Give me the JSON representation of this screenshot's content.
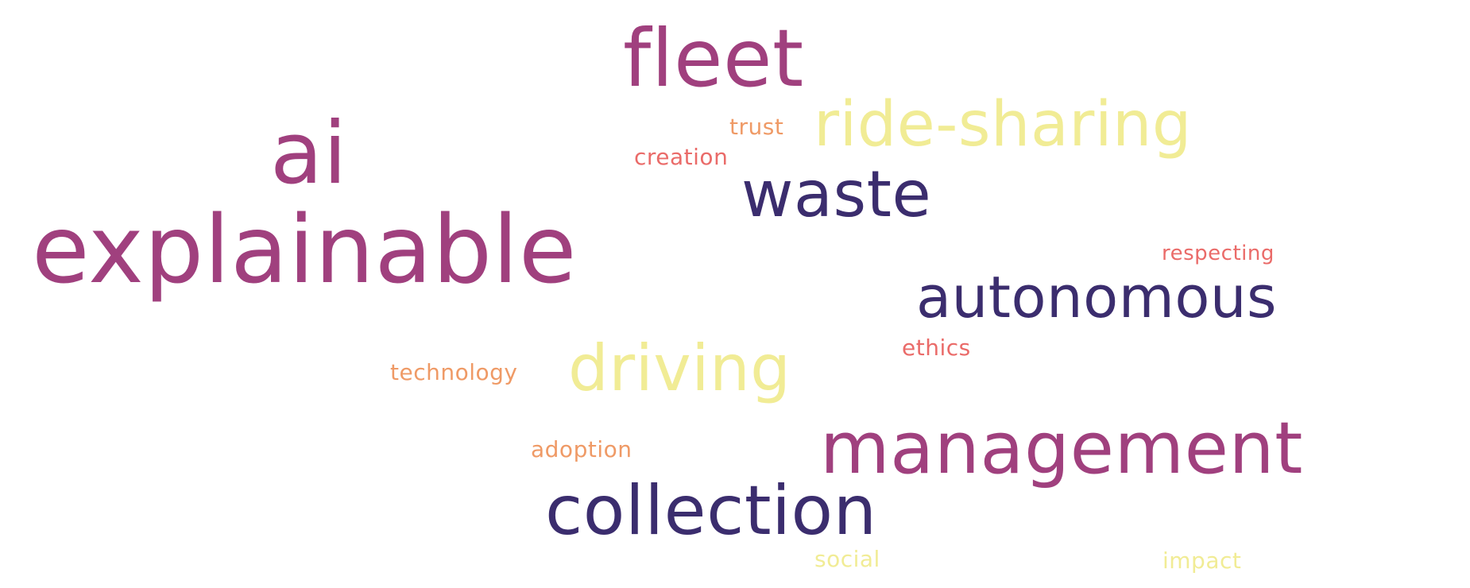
{
  "words": [
    {
      "text": "fleet",
      "color": "#a0407e"
    },
    {
      "text": "ai",
      "color": "#a0407e"
    },
    {
      "text": "explainable",
      "color": "#a0407e"
    },
    {
      "text": "ride-sharing",
      "color": "#f1ec95"
    },
    {
      "text": "trust",
      "color": "#ef9a66"
    },
    {
      "text": "creation",
      "color": "#ea6b69"
    },
    {
      "text": "waste",
      "color": "#3b2d6e"
    },
    {
      "text": "respecting",
      "color": "#ea6b69"
    },
    {
      "text": "autonomous",
      "color": "#3b2d6e"
    },
    {
      "text": "ethics",
      "color": "#ea6b69"
    },
    {
      "text": "technology",
      "color": "#ef9a66"
    },
    {
      "text": "driving",
      "color": "#f1ec95"
    },
    {
      "text": "management",
      "color": "#a0407e"
    },
    {
      "text": "adoption",
      "color": "#ef9a66"
    },
    {
      "text": "collection",
      "color": "#3b2d6e"
    },
    {
      "text": "social",
      "color": "#f1ec95"
    },
    {
      "text": "impact",
      "color": "#f1ec95"
    }
  ]
}
